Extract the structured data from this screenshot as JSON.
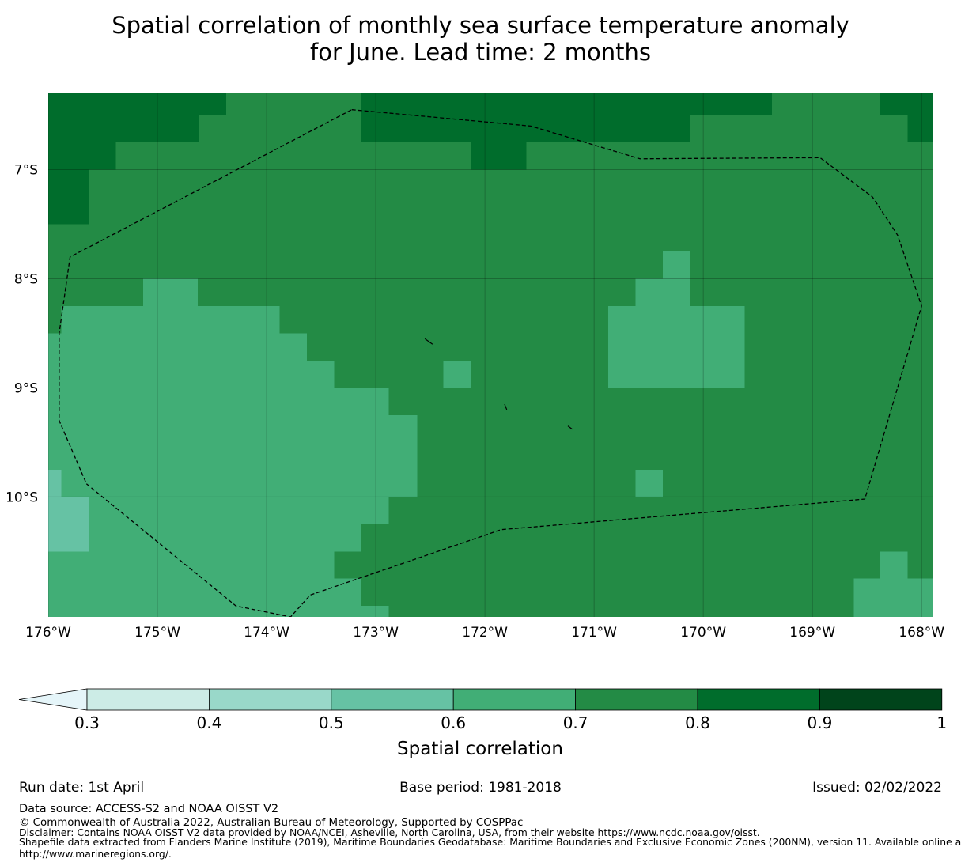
{
  "title": {
    "line1": "Spatial correlation of monthly sea surface temperature anomaly",
    "line2": "for June. Lead time: 2 months"
  },
  "map": {
    "lon_range": [
      -176.0,
      -167.9
    ],
    "lat_range": [
      -11.1,
      -6.3
    ],
    "lon_ticks": [
      {
        "value": -176,
        "label": "176°W"
      },
      {
        "value": -175,
        "label": "175°W"
      },
      {
        "value": -174,
        "label": "174°W"
      },
      {
        "value": -173,
        "label": "173°W"
      },
      {
        "value": -172,
        "label": "172°W"
      },
      {
        "value": -171,
        "label": "171°W"
      },
      {
        "value": -170,
        "label": "170°W"
      },
      {
        "value": -169,
        "label": "169°W"
      },
      {
        "value": -168,
        "label": "168°W"
      }
    ],
    "lat_ticks": [
      {
        "value": -7,
        "label": "7°S"
      },
      {
        "value": -8,
        "label": "8°S"
      },
      {
        "value": -9,
        "label": "9°S"
      },
      {
        "value": -10,
        "label": "10°S"
      }
    ],
    "grid": true,
    "eez_boundary": [
      [
        -173.22,
        -6.45
      ],
      [
        -171.58,
        -6.6
      ],
      [
        -170.58,
        -6.9
      ],
      [
        -168.93,
        -6.89
      ],
      [
        -168.45,
        -7.25
      ],
      [
        -168.22,
        -7.6
      ],
      [
        -168.0,
        -8.25
      ],
      [
        -168.52,
        -10.02
      ],
      [
        -171.85,
        -10.3
      ],
      [
        -173.6,
        -10.9
      ],
      [
        -173.78,
        -11.1
      ],
      [
        -174.28,
        -11.0
      ],
      [
        -175.65,
        -9.88
      ],
      [
        -175.9,
        -9.3
      ],
      [
        -175.9,
        -8.5
      ],
      [
        -175.8,
        -7.8
      ],
      [
        -173.22,
        -6.45
      ]
    ],
    "islands": [
      [
        [
          -172.55,
          -8.55
        ],
        [
          -172.48,
          -8.6
        ]
      ],
      [
        [
          -171.82,
          -9.15
        ],
        [
          -171.8,
          -9.2
        ]
      ],
      [
        [
          -171.24,
          -9.35
        ],
        [
          -171.2,
          -9.38
        ]
      ]
    ]
  },
  "chart_data": {
    "type": "heatmap",
    "title": "Spatial correlation of monthly sea surface temperature anomaly for June. Lead time: 2 months",
    "variable": "Spatial correlation",
    "cell_size_deg": 0.25,
    "bins": [
      {
        "min": 0.3,
        "max": 0.4,
        "color": "#ccece6"
      },
      {
        "min": 0.4,
        "max": 0.5,
        "color": "#99d8c9"
      },
      {
        "min": 0.5,
        "max": 0.6,
        "color": "#66c2a4"
      },
      {
        "min": 0.6,
        "max": 0.7,
        "color": "#41ae76"
      },
      {
        "min": 0.7,
        "max": 0.8,
        "color": "#238b45"
      },
      {
        "min": 0.8,
        "max": 0.9,
        "color": "#006d2c"
      },
      {
        "min": 0.9,
        "max": 1.0,
        "color": "#00441b"
      }
    ],
    "default_value": 0.75,
    "regions": [
      {
        "value": 0.85,
        "lon": [
          -176.0,
          -174.37
        ],
        "lat": [
          -6.5,
          -6.3
        ]
      },
      {
        "value": 0.85,
        "lon": [
          -176.0,
          -174.62
        ],
        "lat": [
          -6.75,
          -6.5
        ]
      },
      {
        "value": 0.85,
        "lon": [
          -176.0,
          -175.38
        ],
        "lat": [
          -7.0,
          -6.75
        ]
      },
      {
        "value": 0.85,
        "lon": [
          -176.0,
          -175.63
        ],
        "lat": [
          -7.5,
          -7.0
        ]
      },
      {
        "value": 0.85,
        "lon": [
          -173.13,
          -169.37
        ],
        "lat": [
          -6.5,
          -6.3
        ]
      },
      {
        "value": 0.85,
        "lon": [
          -173.13,
          -170.12
        ],
        "lat": [
          -6.75,
          -6.5
        ]
      },
      {
        "value": 0.85,
        "lon": [
          -172.13,
          -171.62
        ],
        "lat": [
          -7.0,
          -6.75
        ]
      },
      {
        "value": 0.85,
        "lon": [
          -168.38,
          -167.9
        ],
        "lat": [
          -6.5,
          -6.3
        ]
      },
      {
        "value": 0.85,
        "lon": [
          -168.13,
          -167.9
        ],
        "lat": [
          -6.75,
          -6.5
        ]
      },
      {
        "value": 0.65,
        "lon": [
          -175.88,
          -175.13
        ],
        "lat": [
          -8.5,
          -8.25
        ]
      },
      {
        "value": 0.65,
        "lon": [
          -175.13,
          -174.63
        ],
        "lat": [
          -8.5,
          -8.0
        ]
      },
      {
        "value": 0.65,
        "lon": [
          -174.63,
          -173.88
        ],
        "lat": [
          -8.5,
          -8.25
        ]
      },
      {
        "value": 0.65,
        "lon": [
          -176.0,
          -173.63
        ],
        "lat": [
          -8.75,
          -8.5
        ]
      },
      {
        "value": 0.65,
        "lon": [
          -176.0,
          -173.38
        ],
        "lat": [
          -9.0,
          -8.75
        ]
      },
      {
        "value": 0.65,
        "lon": [
          -176.0,
          -172.88
        ],
        "lat": [
          -9.25,
          -9.0
        ]
      },
      {
        "value": 0.65,
        "lon": [
          -176.0,
          -172.62
        ],
        "lat": [
          -9.75,
          -9.25
        ]
      },
      {
        "value": 0.65,
        "lon": [
          -176.0,
          -172.62
        ],
        "lat": [
          -10.0,
          -9.75
        ]
      },
      {
        "value": 0.65,
        "lon": [
          -176.0,
          -172.88
        ],
        "lat": [
          -10.25,
          -10.0
        ]
      },
      {
        "value": 0.65,
        "lon": [
          -176.0,
          -173.13
        ],
        "lat": [
          -10.5,
          -10.25
        ]
      },
      {
        "value": 0.65,
        "lon": [
          -176.0,
          -173.38
        ],
        "lat": [
          -10.75,
          -10.5
        ]
      },
      {
        "value": 0.65,
        "lon": [
          -176.0,
          -173.13
        ],
        "lat": [
          -11.1,
          -10.75
        ]
      },
      {
        "value": 0.65,
        "lon": [
          -173.13,
          -172.88
        ],
        "lat": [
          -11.1,
          -11.0
        ]
      },
      {
        "value": 0.65,
        "lon": [
          -172.38,
          -172.13
        ],
        "lat": [
          -9.0,
          -8.75
        ]
      },
      {
        "value": 0.65,
        "lon": [
          -170.62,
          -170.12
        ],
        "lat": [
          -8.25,
          -8.0
        ]
      },
      {
        "value": 0.65,
        "lon": [
          -170.37,
          -170.12
        ],
        "lat": [
          -8.0,
          -7.75
        ]
      },
      {
        "value": 0.65,
        "lon": [
          -170.87,
          -169.62
        ],
        "lat": [
          -9.0,
          -8.25
        ]
      },
      {
        "value": 0.65,
        "lon": [
          -170.62,
          -170.37
        ],
        "lat": [
          -10.0,
          -9.75
        ]
      },
      {
        "value": 0.65,
        "lon": [
          -168.62,
          -167.9
        ],
        "lat": [
          -11.1,
          -10.75
        ]
      },
      {
        "value": 0.65,
        "lon": [
          -168.38,
          -168.13
        ],
        "lat": [
          -10.75,
          -10.5
        ]
      },
      {
        "value": 0.55,
        "lon": [
          -176.0,
          -175.88
        ],
        "lat": [
          -10.0,
          -9.75
        ]
      },
      {
        "value": 0.55,
        "lon": [
          -176.0,
          -175.63
        ],
        "lat": [
          -10.5,
          -10.0
        ]
      }
    ]
  },
  "colorbar": {
    "ticks": [
      "0.3",
      "0.4",
      "0.5",
      "0.6",
      "0.7",
      "0.8",
      "0.9",
      "1"
    ],
    "extend_color": "#e5f5f9",
    "label": "Spatial correlation"
  },
  "footer": {
    "run_date": "Run date: 1st April",
    "base_period": "Base period: 1981-2018",
    "issued": "Issued: 02/02/2022",
    "data_source": "Data source: ACCESS-S2 and NOAA OISST V2",
    "copyright": "© Commonwealth of Australia 2022, Australian Bureau of Meteorology, Supported by COSPPac",
    "disclaimer": "Disclaimer: Contains NOAA OISST V2 data provided by NOAA/NCEI, Asheville, North Carolina, USA, from their website https://www.ncdc.noaa.gov/oisst.",
    "shapefile_1": "Shapefile data extracted from Flanders Marine Institute (2019), Maritime Boundaries Geodatabase: Maritime Boundaries and Exclusive Economic Zones (200NM), version 11. Available online at",
    "shapefile_2": "http://www.marineregions.org/."
  }
}
